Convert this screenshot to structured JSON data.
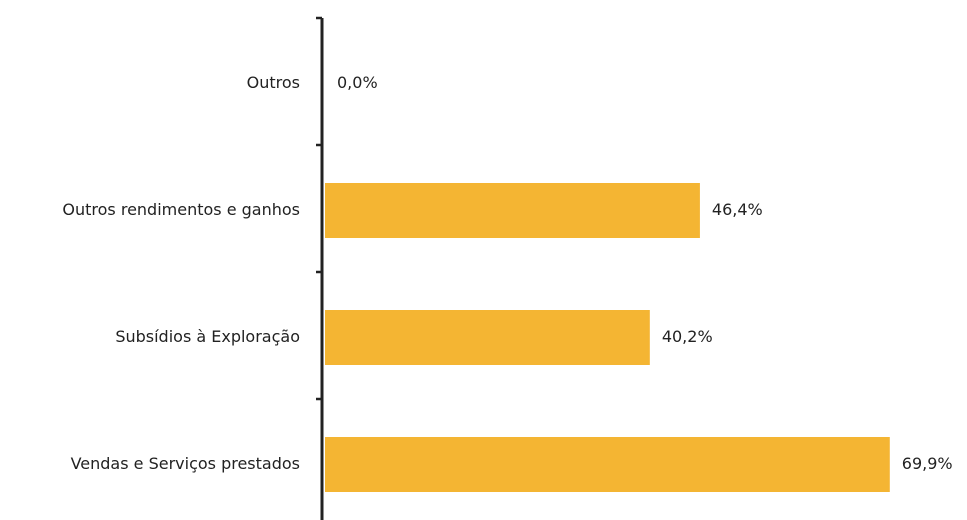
{
  "chart_data": {
    "type": "bar",
    "orientation": "horizontal",
    "categories": [
      "Outros",
      "Outros rendimentos e ganhos",
      "Subsídios à Exploração",
      "Vendas e Serviços prestados"
    ],
    "values": [
      0.0,
      46.4,
      40.2,
      69.9
    ],
    "value_labels": [
      "0,0%",
      "46,4%",
      "40,2%",
      "69,9%"
    ],
    "color": "#f4b533"
  }
}
